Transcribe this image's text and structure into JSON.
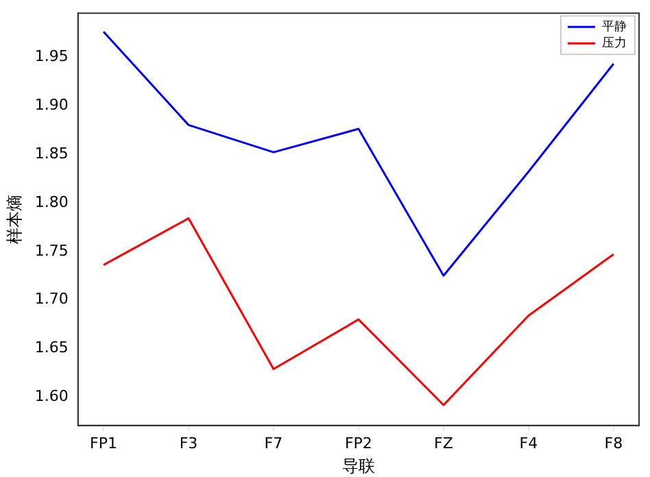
{
  "chart_data": {
    "type": "line",
    "xlabel": "导联",
    "ylabel": "样本熵",
    "categories": [
      "FP1",
      "F3",
      "F7",
      "FP2",
      "FZ",
      "F4",
      "F8"
    ],
    "series": [
      {
        "name": "平静",
        "color": "#0000ff",
        "values": [
          1.976,
          1.88,
          1.852,
          1.876,
          1.725,
          1.832,
          1.943
        ]
      },
      {
        "name": "压力",
        "color": "#ff0000",
        "values": [
          1.736,
          1.784,
          1.629,
          1.68,
          1.592,
          1.684,
          1.747
        ]
      }
    ],
    "ylim": [
      1.571,
      1.995
    ],
    "yticks": [
      {
        "value": 1.6,
        "label": "1.60"
      },
      {
        "value": 1.65,
        "label": "1.65"
      },
      {
        "value": 1.7,
        "label": "1.70"
      },
      {
        "value": 1.75,
        "label": "1.75"
      },
      {
        "value": 1.8,
        "label": "1.80"
      },
      {
        "value": 1.85,
        "label": "1.85"
      },
      {
        "value": 1.9,
        "label": "1.90"
      },
      {
        "value": 1.95,
        "label": "1.95"
      }
    ],
    "grid": false,
    "legend": "top right",
    "marker": "none",
    "line_style": "solid"
  }
}
